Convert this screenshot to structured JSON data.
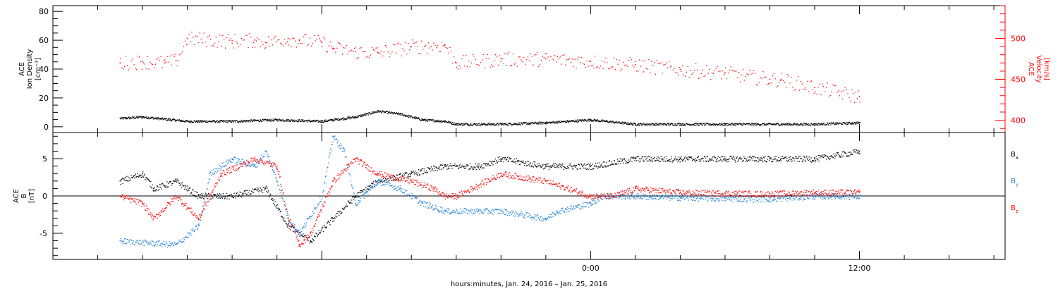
{
  "chart_data": [
    {
      "type": "scatter",
      "title": "",
      "ylabel_left": [
        "ACE",
        "Ion Density",
        "[cm⁻³]"
      ],
      "ylabel_right": [
        "ACE",
        "Velocity",
        "[km/s]"
      ],
      "ylim_left": [
        -4,
        84
      ],
      "ylim_right": [
        385,
        540
      ],
      "yticks_left": [
        "0",
        "20",
        "40",
        "60",
        "80"
      ],
      "yticks_right": [
        "400",
        "450",
        "500"
      ],
      "grid": false,
      "series": [
        {
          "axis": "left",
          "color": "#000000",
          "x": [
            -21.0,
            -20.0,
            -18.0,
            -16.0,
            -14.0,
            -12.0,
            -10.5,
            -9.5,
            -8.5,
            -7.5,
            -6.5,
            -6.0,
            -4.0,
            -2.0,
            0.0,
            2.0,
            4.0,
            6.0,
            8.0,
            10.0,
            12.0
          ],
          "values": [
            6,
            7,
            4,
            4,
            5,
            4,
            7,
            11,
            9,
            5,
            4,
            2,
            2,
            3,
            5,
            2,
            2,
            2,
            2,
            2,
            3
          ]
        },
        {
          "axis": "right",
          "color": "#ff0000",
          "x": [
            -21.0,
            -20.0,
            -19.0,
            -18.5,
            -18.0,
            -16.0,
            -15.0,
            -14.5,
            -13.5,
            -13.0,
            -12.0,
            -11.5,
            -10.5,
            -9.5,
            -8.0,
            -6.5,
            -6.0,
            -4.0,
            -2.0,
            0.0,
            2.0,
            4.0,
            6.0,
            8.0,
            8.5,
            10.0,
            12.0
          ],
          "values": [
            470,
            472,
            470,
            473,
            500,
            497,
            498,
            495,
            500,
            498,
            495,
            488,
            484,
            483,
            490,
            492,
            470,
            475,
            475,
            472,
            468,
            462,
            458,
            450,
            450,
            440,
            429
          ]
        }
      ]
    },
    {
      "type": "scatter",
      "title": "",
      "ylabel": [
        "ACE",
        "B",
        "[nT]"
      ],
      "ylim": [
        -8.5,
        8.5
      ],
      "yticks": [
        "-5",
        "0",
        "5"
      ],
      "grid": false,
      "legend": [
        "Bx",
        "By",
        "Bz"
      ],
      "legend_position": "right",
      "series": [
        {
          "name": "Bx",
          "color": "#000000",
          "x": [
            -21.0,
            -20.0,
            -19.5,
            -18.5,
            -17.5,
            -16.0,
            -14.5,
            -13.5,
            -12.5,
            -11.5,
            -10.5,
            -9.5,
            -8.0,
            -6.5,
            -5.0,
            -4.0,
            -2.0,
            0.0,
            2.0,
            4.0,
            6.0,
            8.0,
            8.5,
            10.0,
            12.0
          ],
          "values": [
            2,
            3,
            1,
            2,
            0,
            0,
            1,
            -4,
            -6,
            -3,
            0,
            2,
            3,
            4,
            4,
            5,
            4,
            4,
            5,
            5,
            5,
            5,
            5,
            5,
            6
          ]
        },
        {
          "name": "By",
          "color": "#1e82dc",
          "x": [
            -21.0,
            -18.5,
            -17.5,
            -17.0,
            -16.0,
            -15.0,
            -14.5,
            -14.0,
            -13.5,
            -13.0,
            -12.0,
            -11.5,
            -11.0,
            -10.5,
            -9.5,
            -8.5,
            -7.5,
            -6.5,
            -5.0,
            -4.0,
            -2.0,
            -1.5,
            0.0,
            0.5,
            2.0,
            4.0,
            6.0,
            8.0,
            10.0,
            12.0
          ],
          "values": [
            -6,
            -6.5,
            -4,
            3,
            5,
            4,
            6,
            2,
            -3,
            -5,
            0,
            8,
            6,
            -1,
            2,
            1,
            -1,
            -2,
            -2,
            -2,
            -3,
            -2,
            -1,
            0,
            0,
            -0.2,
            -0.3,
            -0.4,
            0,
            0
          ]
        },
        {
          "name": "Bz",
          "color": "#ff0000",
          "x": [
            -21.0,
            -20.0,
            -19.5,
            -18.5,
            -17.5,
            -16.5,
            -15.0,
            -14.0,
            -13.5,
            -13.0,
            -12.5,
            -11.5,
            -10.5,
            -9.5,
            -8.0,
            -7.0,
            -6.5,
            -6.0,
            -4.0,
            -2.0,
            0.0,
            1.0,
            2.0,
            4.0,
            6.0,
            8.0,
            10.0,
            12.0
          ],
          "values": [
            0,
            -1,
            -3,
            0,
            -3,
            3,
            5,
            4,
            -3,
            -6.5,
            -5,
            2,
            5,
            3,
            2,
            1,
            0,
            0,
            3,
            2,
            0,
            0,
            1,
            0.5,
            0.4,
            0.3,
            0.5,
            0.5
          ]
        }
      ]
    }
  ],
  "x_axis": {
    "label": "hours:minutes, Jan. 24, 2016 – Jan. 25, 2016",
    "ticks": [
      {
        "value": 0,
        "label": "0:00"
      },
      {
        "value": 12,
        "label": "12:00"
      }
    ],
    "xlim": [
      -24,
      18.5
    ]
  }
}
